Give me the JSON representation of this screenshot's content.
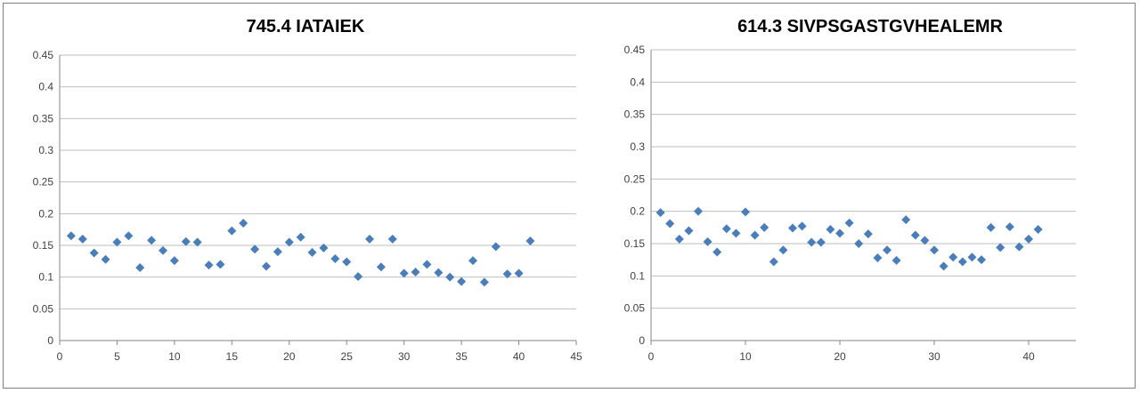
{
  "chart_data": [
    {
      "type": "scatter",
      "title": "745.4 IATAIEK",
      "xlabel": "",
      "ylabel": "",
      "xlim": [
        0,
        45
      ],
      "ylim": [
        0,
        0.45
      ],
      "xticks": [
        0,
        5,
        10,
        15,
        20,
        25,
        30,
        35,
        40,
        45
      ],
      "yticks": [
        0,
        0.05,
        0.1,
        0.15,
        0.2,
        0.25,
        0.3,
        0.35,
        0.4,
        0.45
      ],
      "grid": true,
      "marker_color": "#4a7ebb",
      "x": [
        1,
        2,
        3,
        4,
        5,
        6,
        7,
        8,
        9,
        10,
        11,
        12,
        13,
        14,
        15,
        16,
        17,
        18,
        19,
        20,
        21,
        22,
        23,
        24,
        25,
        26,
        27,
        28,
        29,
        30,
        31,
        32,
        33,
        34,
        35,
        36,
        37,
        38,
        39,
        40,
        41
      ],
      "y": [
        0.165,
        0.16,
        0.138,
        0.128,
        0.155,
        0.165,
        0.115,
        0.158,
        0.142,
        0.126,
        0.156,
        0.155,
        0.119,
        0.12,
        0.173,
        0.185,
        0.144,
        0.117,
        0.14,
        0.155,
        0.163,
        0.139,
        0.146,
        0.129,
        0.124,
        0.101,
        0.16,
        0.116,
        0.16,
        0.106,
        0.108,
        0.12,
        0.107,
        0.1,
        0.093,
        0.126,
        0.092,
        0.148,
        0.105,
        0.106,
        0.157
      ]
    },
    {
      "type": "scatter",
      "title": "614.3 SIVPSGASTGVHEALEMR",
      "xlabel": "",
      "ylabel": "",
      "xlim": [
        0,
        45
      ],
      "ylim": [
        0,
        0.45
      ],
      "xticks": [
        0,
        10,
        20,
        30,
        40
      ],
      "yticks": [
        0,
        0.05,
        0.1,
        0.15,
        0.2,
        0.25,
        0.3,
        0.35,
        0.4,
        0.45
      ],
      "grid": true,
      "marker_color": "#4a7ebb",
      "x": [
        1,
        2,
        3,
        4,
        5,
        6,
        7,
        8,
        9,
        10,
        11,
        12,
        13,
        14,
        15,
        16,
        17,
        18,
        19,
        20,
        21,
        22,
        23,
        24,
        25,
        26,
        27,
        28,
        29,
        30,
        31,
        32,
        33,
        34,
        35,
        36,
        37,
        38,
        39,
        40,
        41
      ],
      "y": [
        0.198,
        0.181,
        0.157,
        0.17,
        0.2,
        0.153,
        0.137,
        0.173,
        0.166,
        0.199,
        0.163,
        0.175,
        0.122,
        0.14,
        0.174,
        0.177,
        0.152,
        0.152,
        0.172,
        0.166,
        0.182,
        0.15,
        0.165,
        0.128,
        0.14,
        0.124,
        0.187,
        0.163,
        0.155,
        0.14,
        0.115,
        0.129,
        0.122,
        0.129,
        0.125,
        0.175,
        0.144,
        0.176,
        0.145,
        0.157,
        0.172
      ]
    }
  ]
}
